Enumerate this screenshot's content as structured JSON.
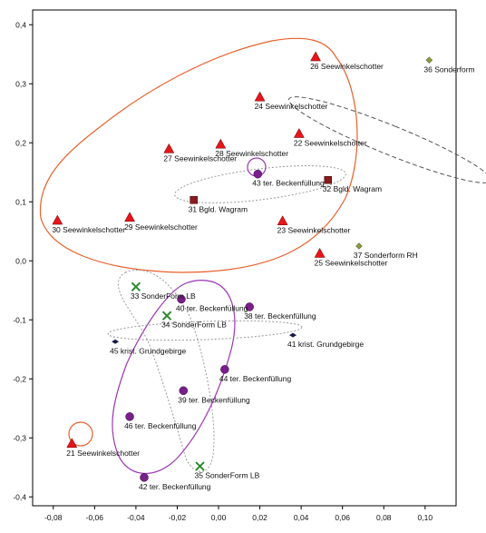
{
  "chart_data": {
    "type": "scatter",
    "title": "",
    "xlabel": "",
    "ylabel": "",
    "xlim": [
      -0.09,
      0.115
    ],
    "ylim": [
      -0.415,
      0.425
    ],
    "grid": false,
    "x_ticks": [
      -0.08,
      -0.06,
      -0.04,
      -0.02,
      0.0,
      0.02,
      0.04,
      0.06,
      0.08,
      0.1
    ],
    "x_tick_labels": [
      "-0,08",
      "-0,06",
      "-0,04",
      "-0,02",
      "0,00",
      "0,02",
      "0,04",
      "0,06",
      "0,08",
      "0,10"
    ],
    "y_ticks": [
      0.4,
      0.3,
      0.2,
      0.1,
      0.0,
      -0.1,
      -0.2,
      -0.3,
      -0.4
    ],
    "y_tick_labels": [
      "0,4",
      "0,3",
      "0,2",
      "0,1",
      "0,0",
      "-0,1",
      "-0,2",
      "-0,3",
      "-0,4"
    ],
    "colors": {
      "seewinkel": "#e8141a",
      "wagram": "#8b1a1a",
      "beckenfuellung": "#7a1f8a",
      "sonderform_lb": "#2a8a2a",
      "grundgebirge": "#1a1a4a",
      "sonderform_rh": "#8a9a3a",
      "ellipse_orange": "#e8602a",
      "ellipse_purple": "#9b35b5",
      "ellipse_gray": "#999999",
      "ellipse_dark": "#555555"
    },
    "points": [
      {
        "x": 0.047,
        "y": 0.345,
        "label": "26 Seewinkelschotter",
        "group": "seewinkel"
      },
      {
        "x": 0.102,
        "y": 0.34,
        "label": "36 Sonderform",
        "group": "sonderform_rh"
      },
      {
        "x": 0.02,
        "y": 0.277,
        "label": "24 Seewinkelschotter",
        "group": "seewinkel"
      },
      {
        "x": 0.039,
        "y": 0.215,
        "label": "22 Seewinkelschotter",
        "group": "seewinkel"
      },
      {
        "x": 0.001,
        "y": 0.197,
        "label": "28 Seewinkelschotter",
        "group": "seewinkel"
      },
      {
        "x": -0.024,
        "y": 0.189,
        "label": "27 Seewinkelschotter",
        "group": "seewinkel"
      },
      {
        "x": 0.019,
        "y": 0.147,
        "label": "43 ter. Beckenfüllung",
        "group": "beckenfuellung"
      },
      {
        "x": 0.053,
        "y": 0.137,
        "label": "32 Bgld. Wagram",
        "group": "wagram"
      },
      {
        "x": -0.012,
        "y": 0.103,
        "label": "31 Bgld. Wagram",
        "group": "wagram"
      },
      {
        "x": -0.078,
        "y": 0.068,
        "label": "30 Seewinkelschotter",
        "group": "seewinkel"
      },
      {
        "x": -0.043,
        "y": 0.073,
        "label": "29 Seewinkelschotter",
        "group": "seewinkel"
      },
      {
        "x": 0.031,
        "y": 0.067,
        "label": "23 Seewinkelschotter",
        "group": "seewinkel"
      },
      {
        "x": 0.068,
        "y": 0.025,
        "label": "37 Sonderform RH",
        "group": "sonderform_rh"
      },
      {
        "x": 0.049,
        "y": 0.012,
        "label": "25 Seewinkelschotter",
        "group": "seewinkel"
      },
      {
        "x": -0.04,
        "y": -0.044,
        "label": "33 SonderForm LB",
        "group": "sonderform_lb"
      },
      {
        "x": -0.018,
        "y": -0.065,
        "label": "40 ter. Beckenfüllung",
        "group": "beckenfuellung"
      },
      {
        "x": -0.025,
        "y": -0.093,
        "label": "34 SonderForm LB",
        "group": "sonderform_lb"
      },
      {
        "x": 0.015,
        "y": -0.078,
        "label": "38 ter. Beckenfüllung",
        "group": "beckenfuellung"
      },
      {
        "x": -0.05,
        "y": -0.137,
        "label": "45 krist. Grundgebirge",
        "group": "grundgebirge"
      },
      {
        "x": 0.036,
        "y": -0.126,
        "label": "41 krist. Grundgebirge",
        "group": "grundgebirge"
      },
      {
        "x": 0.003,
        "y": -0.184,
        "label": "44 ter. Beckenfüllung",
        "group": "beckenfuellung"
      },
      {
        "x": -0.017,
        "y": -0.22,
        "label": "39 ter. Beckenfüllung",
        "group": "beckenfuellung"
      },
      {
        "x": -0.043,
        "y": -0.264,
        "label": "46 ter. Beckenfüllung",
        "group": "beckenfuellung"
      },
      {
        "x": -0.071,
        "y": -0.31,
        "label": "21 Seewinkelschotter",
        "group": "seewinkel"
      },
      {
        "x": -0.009,
        "y": -0.348,
        "label": "35 SonderForm LB",
        "group": "sonderform_lb"
      },
      {
        "x": -0.036,
        "y": -0.367,
        "label": "42 ter. Beckenfüllung",
        "group": "beckenfuellung"
      }
    ]
  }
}
